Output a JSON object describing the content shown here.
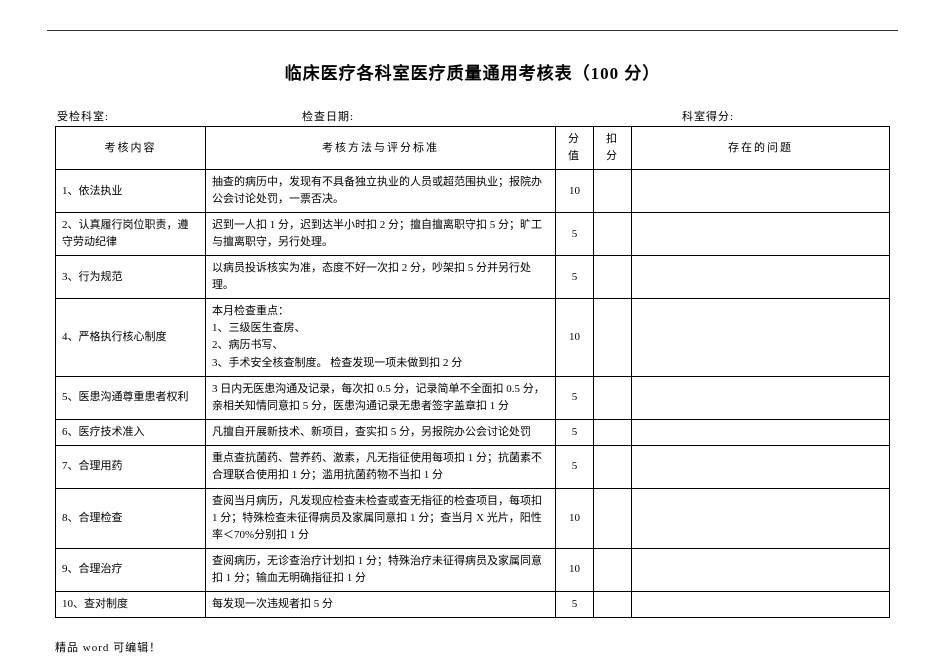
{
  "title": "临床医疗各科室医疗质量通用考核表（100 分）",
  "meta": {
    "dept_label": "受检科室:",
    "date_label": "检查日期:",
    "score_label": "科室得分:"
  },
  "columns": {
    "c1": "考核内容",
    "c2": "考核方法与评分标准",
    "c3": "分值",
    "c4": "扣分",
    "c5": "存在的问题"
  },
  "rows": [
    {
      "name": "1、依法执业",
      "method": "抽查的病历中，发现有不具备独立执业的人员或超范围执业；报院办公会讨论处罚，一票否决。",
      "score": "10"
    },
    {
      "name": "2、认真履行岗位职责，遵守劳动纪律",
      "method": "迟到一人扣 1 分，迟到达半小时扣 2 分；擅自擅离职守扣 5 分；旷工与擅离职守，另行处理。",
      "score": "5"
    },
    {
      "name": "3、行为规范",
      "method": "以病员投诉核实为准，态度不好一次扣 2 分，吵架扣 5 分并另行处理。",
      "score": "5"
    },
    {
      "name": "4、严格执行核心制度",
      "method": "本月检查重点：\n1、三级医生查房、\n2、病历书写、\n3、手术安全核查制度。  检查发现一项未做到扣 2 分",
      "score": "10"
    },
    {
      "name": "5、医患沟通尊重患者权利",
      "method": "3 日内无医患沟通及记录，每次扣 0.5 分，记录简单不全面扣 0.5 分，亲相关知情同意扣 5 分，医患沟通记录无患者签字盖章扣 1 分",
      "score": "5"
    },
    {
      "name": "6、医疗技术准入",
      "method": "凡擅自开展新技术、新项目，查实扣 5 分，另报院办公会讨论处罚",
      "score": "5"
    },
    {
      "name": "7、合理用药",
      "method": "重点查抗菌药、营养药、激素，凡无指征使用每项扣 1 分；抗菌素不合理联合使用扣 1 分；滥用抗菌药物不当扣 1 分",
      "score": "5"
    },
    {
      "name": "8、合理检查",
      "method": "查阅当月病历，凡发现应检查未检查或查无指征的检查项目，每项扣 1 分；特殊检查未征得病员及家属同意扣 1 分；查当月 X 光片，阳性率＜70%分别扣 1 分",
      "score": "10"
    },
    {
      "name": "9、合理治疗",
      "method": "查阅病历，无诊查治疗计划扣 1 分；特殊治疗未征得病员及家属同意扣 1 分；输血无明确指征扣 1 分",
      "score": "10"
    },
    {
      "name": "10、查对制度",
      "method": "每发现一次违规者扣 5 分",
      "score": "5"
    }
  ],
  "footer": "精品 word 可编辑！"
}
